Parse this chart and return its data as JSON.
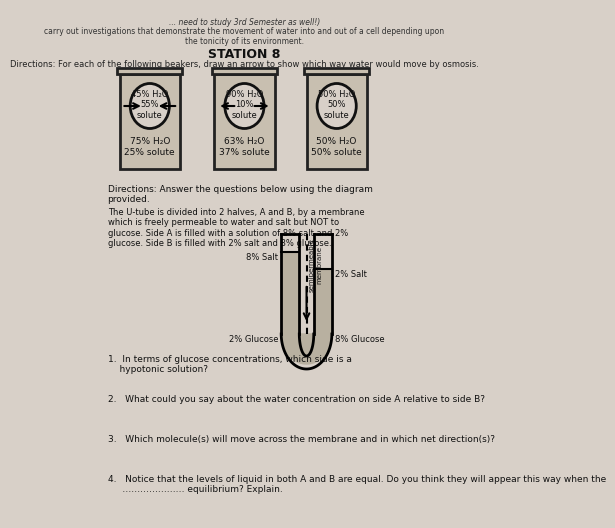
{
  "bg_color": "#d8d0c8",
  "title_text": "STATION 8",
  "directions1": "Directions: For each of the following beakers, draw an arrow to show which way water would move by osmosis.",
  "header_text": "carry out investigations that demonstrate the movement of water into and out of a cell depending upon\nthe tonicity of its environment.",
  "beakers": [
    {
      "cell_top": "45% H₂O\n55%\nsolute",
      "cell_bottom": "75% H₂O\n25% solute",
      "arrow_dir": "in"
    },
    {
      "cell_top": "90% H₂O\n10%\nsolute",
      "cell_bottom": "63% H₂O\n37% solute",
      "arrow_dir": "out"
    },
    {
      "cell_top": "50% H₂O\n50%\nsolute",
      "cell_bottom": "50% H₂O\n50% solute",
      "arrow_dir": "none"
    }
  ],
  "directions2": "Directions: Answer the questions below using the diagram\nprovided.",
  "utube_text": "The U-tube is divided into 2 halves, A and B, by a membrane\nwhich is freely permeable to water and salt but NOT to\nglucose. Side A is filled with a solution of 8% salt and 2%\nglucose. Side B is filled with 2% salt and 8% glucose.",
  "utube_labels": {
    "left_top": "8% Salt",
    "left_bot": "2% Glucose",
    "right_top": "2% Salt",
    "right_bot": "8% Glucose",
    "membrane": "semipermeable\nmembrane"
  },
  "questions": [
    "1.  In terms of glucose concentrations, which side is a\n    hypotonic solution?",
    "2.   What could you say about the water concentration on side A relative to side B?",
    "3.   Which molecule(s) will move across the membrane and in which net direction(s)?",
    "4.   Notice that the levels of liquid in both A and B are equal. Do you think they will appear this way when the\n     ………………… equilibrium? Explain."
  ]
}
